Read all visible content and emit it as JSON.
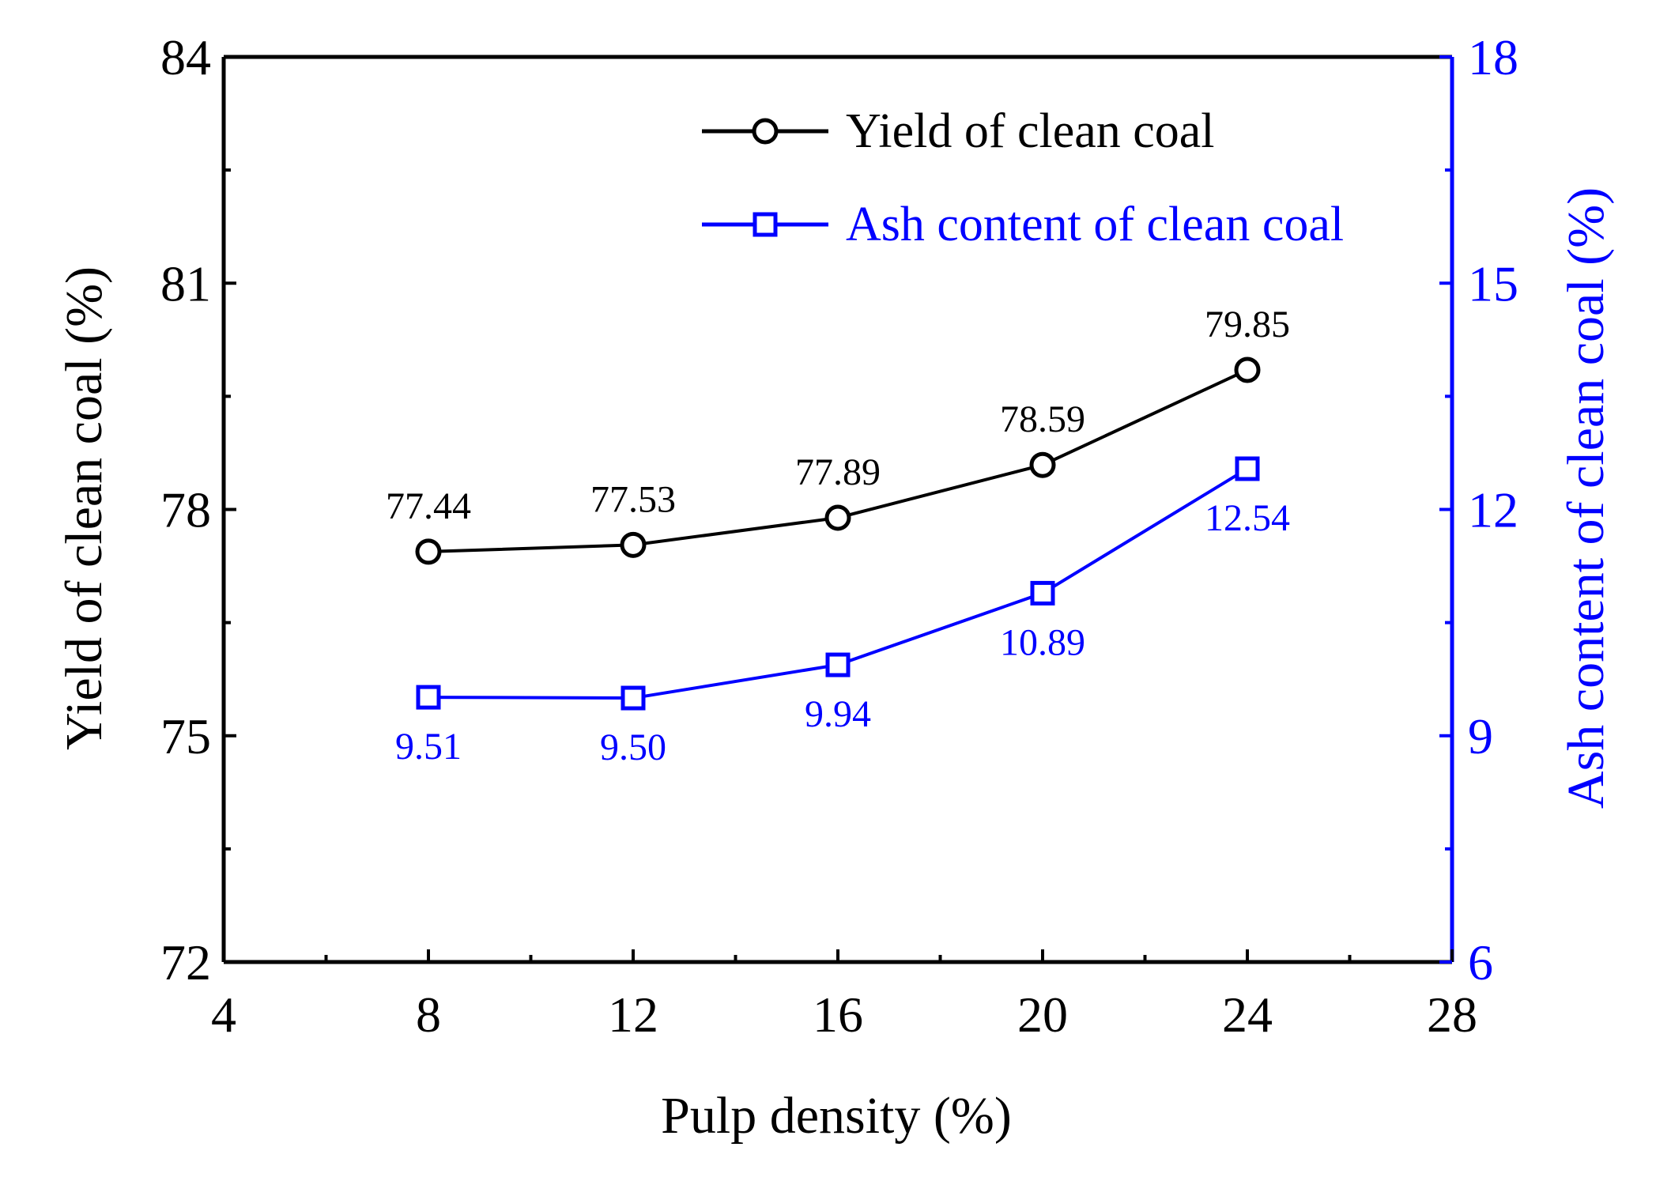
{
  "chart_data": {
    "type": "line",
    "title": "",
    "xlabel": "Pulp density (%)",
    "ylabel": "Yield of clean coal (%)",
    "y2label": "Ash content of clean coal (%)",
    "xlim": [
      4,
      28
    ],
    "ylim": [
      72,
      84
    ],
    "y2lim": [
      6,
      18
    ],
    "xticks": [
      4,
      8,
      12,
      16,
      20,
      24,
      28
    ],
    "yticks": [
      72,
      75,
      78,
      81,
      84
    ],
    "y2ticks": [
      6,
      9,
      12,
      15,
      18
    ],
    "grid": false,
    "legend_position": "top-right",
    "colors": {
      "axis": "#000000",
      "series1": "#000000",
      "series2": "#0000ff"
    },
    "series": [
      {
        "name": "Yield of clean coal",
        "axis": "left",
        "marker": "circle",
        "x": [
          8,
          12,
          16,
          20,
          24
        ],
        "values": [
          77.44,
          77.53,
          77.89,
          78.59,
          79.85
        ],
        "labels": [
          "77.44",
          "77.53",
          "77.89",
          "78.59",
          "79.85"
        ]
      },
      {
        "name": "Ash content of clean coal",
        "axis": "right",
        "marker": "square",
        "x": [
          8,
          12,
          16,
          20,
          24
        ],
        "values": [
          9.51,
          9.5,
          9.94,
          10.89,
          12.54
        ],
        "labels": [
          "9.51",
          "9.50",
          "9.94",
          "10.89",
          "12.54"
        ]
      }
    ]
  }
}
